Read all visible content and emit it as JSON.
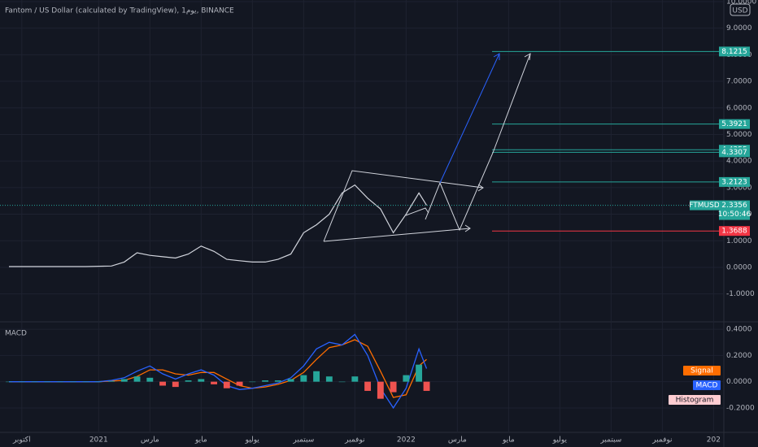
{
  "chart_data": [
    {
      "type": "line",
      "title": "Fantom / US Dollar (calculated by TradingView), 1يوم, BINANCE",
      "currency": "USD",
      "x": [
        -0.5,
        0,
        0.5,
        1,
        1.5,
        2,
        2.5,
        3,
        3.5,
        4,
        4.5,
        5,
        5.5,
        6,
        6.5,
        7,
        7.5,
        8,
        8.5,
        9,
        9.5,
        10,
        10.5,
        11,
        11.5,
        12,
        12.5,
        13,
        13.5,
        14,
        14.5,
        15,
        15.5,
        15.8
      ],
      "series": [
        {
          "name": "FTMUSD",
          "color": "#d1d4dc",
          "values": [
            0.03,
            0.03,
            0.03,
            0.03,
            0.03,
            0.03,
            0.03,
            0.04,
            0.05,
            0.2,
            0.55,
            0.45,
            0.4,
            0.35,
            0.5,
            0.8,
            0.6,
            0.3,
            0.25,
            0.2,
            0.2,
            0.3,
            0.5,
            1.3,
            1.6,
            2.0,
            2.8,
            3.1,
            2.6,
            2.2,
            1.3,
            2.0,
            2.8,
            2.3356
          ]
        }
      ],
      "last_price": 2.3356,
      "countdown": "10:50:46",
      "price_levels": [
        {
          "value": 8.1215,
          "color": "#26a69a"
        },
        {
          "value": 5.3921,
          "color": "#26a69a"
        },
        {
          "value": 4.4255,
          "color": "#26a69a"
        },
        {
          "value": 4.3307,
          "color": "#26a69a"
        },
        {
          "value": 3.2123,
          "color": "#26a69a"
        },
        {
          "value": 1.3688,
          "color": "#f23645"
        }
      ],
      "xlim": [
        -0.85,
        27.4
      ],
      "ylim": [
        -2.02,
        10.06
      ],
      "yticks": [
        {
          "value": -1,
          "label": "-1.0000"
        },
        {
          "value": 0,
          "label": "0.0000"
        },
        {
          "value": 1,
          "label": "1.0000"
        },
        {
          "value": 2,
          "label": "2.0000"
        },
        {
          "value": 3,
          "label": "3.0000"
        },
        {
          "value": 4,
          "label": "4.0000"
        },
        {
          "value": 5,
          "label": "5.0000"
        },
        {
          "value": 6,
          "label": "6.0000"
        },
        {
          "value": 7,
          "label": "7.0000"
        },
        {
          "value": 8,
          "label": "8.0000"
        },
        {
          "value": 9,
          "label": "9.0000"
        },
        {
          "value": 10,
          "label": "10.0000"
        }
      ],
      "grid": true
    },
    {
      "type": "macd",
      "title": "MACD",
      "x": [
        -0.5,
        0,
        0.5,
        1,
        1.5,
        2,
        2.5,
        3,
        3.5,
        4,
        4.5,
        5,
        5.5,
        6,
        6.5,
        7,
        7.5,
        8,
        8.5,
        9,
        9.5,
        10,
        10.5,
        11,
        11.5,
        12,
        12.5,
        13,
        13.5,
        14,
        14.5,
        15,
        15.5,
        15.8
      ],
      "series": [
        {
          "name": "Signal",
          "color": "#ff6d00",
          "values": [
            0,
            0,
            0,
            0,
            0,
            0,
            0,
            0,
            0.005,
            0.01,
            0.04,
            0.09,
            0.09,
            0.06,
            0.05,
            0.07,
            0.07,
            0.02,
            -0.03,
            -0.05,
            -0.04,
            -0.02,
            0.01,
            0.07,
            0.17,
            0.26,
            0.28,
            0.32,
            0.27,
            0.08,
            -0.12,
            -0.1,
            0.12,
            0.17
          ]
        },
        {
          "name": "MACD",
          "color": "#2962ff",
          "values": [
            0,
            0,
            0,
            0,
            0,
            0,
            0,
            0,
            0.01,
            0.03,
            0.08,
            0.12,
            0.06,
            0.02,
            0.06,
            0.09,
            0.05,
            -0.03,
            -0.06,
            -0.05,
            -0.03,
            -0.01,
            0.03,
            0.12,
            0.25,
            0.3,
            0.28,
            0.36,
            0.2,
            -0.05,
            -0.2,
            -0.05,
            0.25,
            0.1
          ]
        },
        {
          "name": "Histogram",
          "color": "#ffcdd2",
          "values": [
            0,
            0,
            0,
            0,
            0,
            0,
            0,
            0,
            0.005,
            0.02,
            0.04,
            0.03,
            -0.03,
            -0.04,
            0.01,
            0.02,
            -0.02,
            -0.05,
            -0.03,
            0,
            0.01,
            0.01,
            0.02,
            0.05,
            0.08,
            0.04,
            0,
            0.04,
            -0.07,
            -0.13,
            -0.08,
            0.05,
            0.13,
            -0.07
          ]
        }
      ],
      "xlim": [
        -0.85,
        27.4
      ],
      "ylim": [
        -0.38,
        0.45
      ],
      "yticks": [
        {
          "value": -0.2,
          "label": "-0.2000"
        },
        {
          "value": 0,
          "label": "0.0000"
        },
        {
          "value": 0.2,
          "label": "0.2000"
        },
        {
          "value": 0.4,
          "label": "0.4000"
        }
      ],
      "xticks": [
        {
          "value": 0,
          "label": "اكتوبر"
        },
        {
          "value": 3,
          "label": "2021"
        },
        {
          "value": 5,
          "label": "مارس"
        },
        {
          "value": 7,
          "label": "مايو"
        },
        {
          "value": 9,
          "label": "يوليو"
        },
        {
          "value": 11,
          "label": "سبتمبر"
        },
        {
          "value": 13,
          "label": "نوفمبر"
        },
        {
          "value": 15,
          "label": "2022"
        },
        {
          "value": 17,
          "label": "مارس"
        },
        {
          "value": 19,
          "label": "مايو"
        },
        {
          "value": 21,
          "label": "يوليو"
        },
        {
          "value": 23,
          "label": "سبتمبر"
        },
        {
          "value": 25,
          "label": "نوفمبر"
        },
        {
          "value": 27,
          "label": "202"
        }
      ],
      "grid": true
    }
  ]
}
